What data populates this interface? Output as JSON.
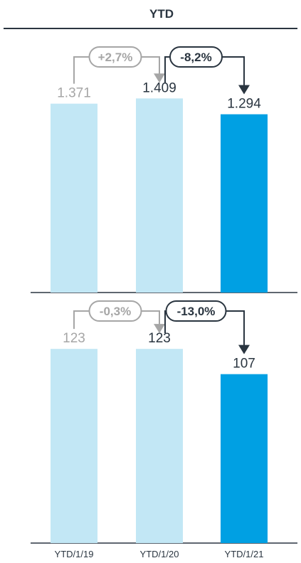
{
  "header": {
    "title": "YTD"
  },
  "colors": {
    "past_bar": "#c2e7f5",
    "current_bar": "#00a0e3",
    "dark": "#2a3540",
    "grey": "#a6a6a6"
  },
  "chart_data": [
    {
      "type": "bar",
      "categories": [
        "YTD/1/19",
        "YTD/1/20",
        "YTD/1/21"
      ],
      "values": [
        1371,
        1409,
        1294
      ],
      "value_labels": [
        "1.371",
        "1.409",
        "1.294"
      ],
      "ylim": [
        0,
        1550
      ],
      "changes": [
        {
          "from": 0,
          "to": 1,
          "label": "+2,7%"
        },
        {
          "from": 1,
          "to": 2,
          "label": "-8,2%"
        }
      ]
    },
    {
      "type": "bar",
      "categories": [
        "YTD/1/19",
        "YTD/1/20",
        "YTD/1/21"
      ],
      "values": [
        123,
        123,
        107
      ],
      "value_labels": [
        "123",
        "123",
        "107"
      ],
      "ylim": [
        0,
        133
      ],
      "changes": [
        {
          "from": 0,
          "to": 1,
          "label": "-0,3%"
        },
        {
          "from": 1,
          "to": 2,
          "label": "-13,0%"
        }
      ]
    }
  ]
}
